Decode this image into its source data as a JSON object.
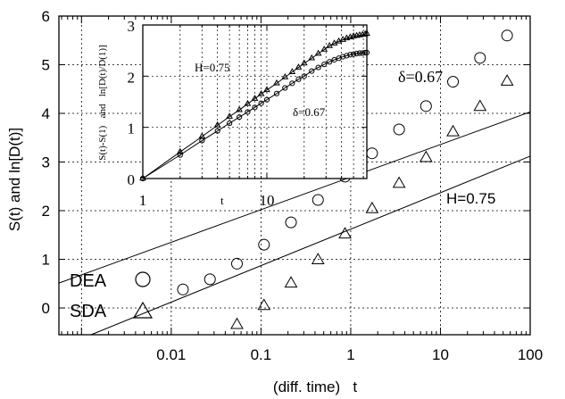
{
  "chart_data": [
    {
      "type": "scatter",
      "title": "",
      "xlabel": "(diff. time)   t",
      "ylabel": "S(t)   and   ln[D(t)]",
      "xscale": "log",
      "xlim": [
        0.00056,
        100
      ],
      "ylim": [
        -0.55,
        6
      ],
      "grid": true,
      "xticks": [
        0.01,
        0.1,
        1,
        10,
        100
      ],
      "xtick_labels": [
        "0.01",
        "0.1",
        "1",
        "10",
        "100"
      ],
      "yticks": [
        0,
        1,
        2,
        3,
        4,
        5,
        6
      ],
      "ytick_labels": [
        "0",
        "1",
        "2",
        "3",
        "4",
        "5",
        "6"
      ],
      "legend_position": "bottom-left",
      "series": [
        {
          "name": "DEA",
          "marker": "circle",
          "x": [
            0.0135,
            0.027,
            0.054,
            0.108,
            0.216,
            0.432,
            0.864,
            1.73,
            3.46,
            6.91,
            13.8,
            27.6,
            55.3
          ],
          "y": [
            0.38,
            0.59,
            0.91,
            1.3,
            1.76,
            2.22,
            2.7,
            3.18,
            3.67,
            4.15,
            4.65,
            5.14,
            5.6
          ]
        },
        {
          "name": "SDA",
          "marker": "triangle",
          "x": [
            0.054,
            0.108,
            0.216,
            0.432,
            0.864,
            1.73,
            3.46,
            6.91,
            13.8,
            27.6,
            55.3
          ],
          "y": [
            -0.35,
            0.04,
            0.5,
            0.98,
            1.51,
            2.03,
            2.55,
            3.08,
            3.61,
            4.13,
            4.65
          ]
        }
      ],
      "fit_lines": [
        {
          "for": "DEA",
          "slope": 0.67,
          "intercept": 2.69
        },
        {
          "for": "SDA",
          "slope": 0.75,
          "intercept": 1.62
        }
      ],
      "annotations": [
        {
          "text": "δ=0.67",
          "near": "DEA fit line, upper right"
        },
        {
          "text": "H=0.75",
          "near": "SDA fit line, right"
        }
      ]
    },
    {
      "type": "scatter",
      "title": "",
      "xlabel": "t",
      "ylabel": "S(t)-S(1)   and   ln[D(t)/D(1)]",
      "xscale": "log",
      "xlim": [
        1,
        64
      ],
      "ylim": [
        0,
        3
      ],
      "grid": true,
      "xticks": [
        1,
        10
      ],
      "xtick_labels": [
        "1",
        "10"
      ],
      "yticks": [
        0,
        1,
        2,
        3
      ],
      "ytick_labels": [
        "0",
        "1",
        "2",
        "3"
      ],
      "series": [
        {
          "marker": "circle",
          "x": [
            1,
            2,
            3,
            4,
            5,
            6,
            7,
            8,
            9,
            10,
            12,
            14,
            16,
            18,
            20,
            23,
            26,
            29,
            32,
            35,
            38,
            41,
            44,
            47,
            50,
            53,
            56,
            59,
            62,
            64
          ],
          "y": [
            0,
            0.46,
            0.74,
            0.93,
            1.08,
            1.2,
            1.3,
            1.39,
            1.47,
            1.54,
            1.66,
            1.77,
            1.86,
            1.94,
            2.0,
            2.1,
            2.17,
            2.23,
            2.28,
            2.32,
            2.35,
            2.38,
            2.4,
            2.42,
            2.43,
            2.44,
            2.45,
            2.45,
            2.46,
            2.46
          ]
        },
        {
          "marker": "triangle",
          "x": [
            1,
            2,
            3,
            4,
            5,
            6,
            7,
            8,
            9,
            10,
            12,
            14,
            16,
            18,
            20,
            23,
            26,
            29,
            32,
            35,
            38,
            41,
            44,
            47,
            50,
            53,
            56,
            59,
            62,
            64
          ],
          "y": [
            0,
            0.52,
            0.82,
            1.04,
            1.21,
            1.34,
            1.46,
            1.56,
            1.65,
            1.73,
            1.86,
            1.98,
            2.08,
            2.17,
            2.25,
            2.35,
            2.44,
            2.52,
            2.59,
            2.64,
            2.68,
            2.71,
            2.74,
            2.76,
            2.78,
            2.79,
            2.8,
            2.81,
            2.82,
            2.83
          ]
        }
      ],
      "annotations": [
        {
          "text": "H=0.75",
          "near": "upper left"
        },
        {
          "text": "δ=0.67",
          "near": "right, below circles"
        }
      ]
    }
  ]
}
